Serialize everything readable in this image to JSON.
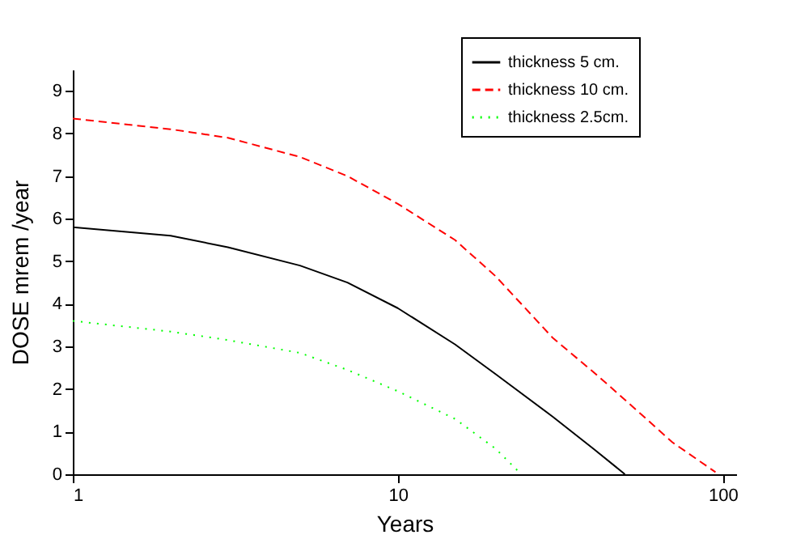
{
  "chart_data": {
    "type": "line",
    "xlabel": "Years",
    "ylabel": "DOSE mrem /year",
    "log": "x",
    "xlim": [
      1,
      110
    ],
    "xticks": [
      1,
      10,
      100
    ],
    "ylim": [
      0,
      9.5
    ],
    "yticks": [
      0,
      1,
      2,
      3,
      4,
      5,
      6,
      7,
      8,
      9
    ],
    "grid": false,
    "legend": "top right",
    "marker": "none",
    "series": [
      {
        "name": "thickness 5  cm.",
        "color": "#000000",
        "line_style": "solid",
        "x": [
          1,
          2,
          3,
          5,
          7,
          10,
          15,
          20,
          30,
          40,
          50
        ],
        "values": [
          5.8,
          5.6,
          5.33,
          4.9,
          4.5,
          3.9,
          3.05,
          2.35,
          1.35,
          0.6,
          0
        ]
      },
      {
        "name": "thickness 10 cm.",
        "color": "#ff0000",
        "line_style": "dashed",
        "x": [
          1,
          2,
          3,
          5,
          7,
          10,
          15,
          20,
          30,
          40,
          50,
          70,
          95
        ],
        "values": [
          8.35,
          8.1,
          7.9,
          7.45,
          7.0,
          6.35,
          5.5,
          4.65,
          3.2,
          2.4,
          1.75,
          0.75,
          0.05
        ]
      },
      {
        "name": "thickness 2.5cm.",
        "color": "#00ff00",
        "line_style": "dotted",
        "x": [
          1,
          2,
          3,
          5,
          7,
          10,
          15,
          20,
          24
        ],
        "values": [
          3.6,
          3.35,
          3.15,
          2.85,
          2.45,
          1.95,
          1.3,
          0.6,
          0
        ]
      }
    ]
  }
}
